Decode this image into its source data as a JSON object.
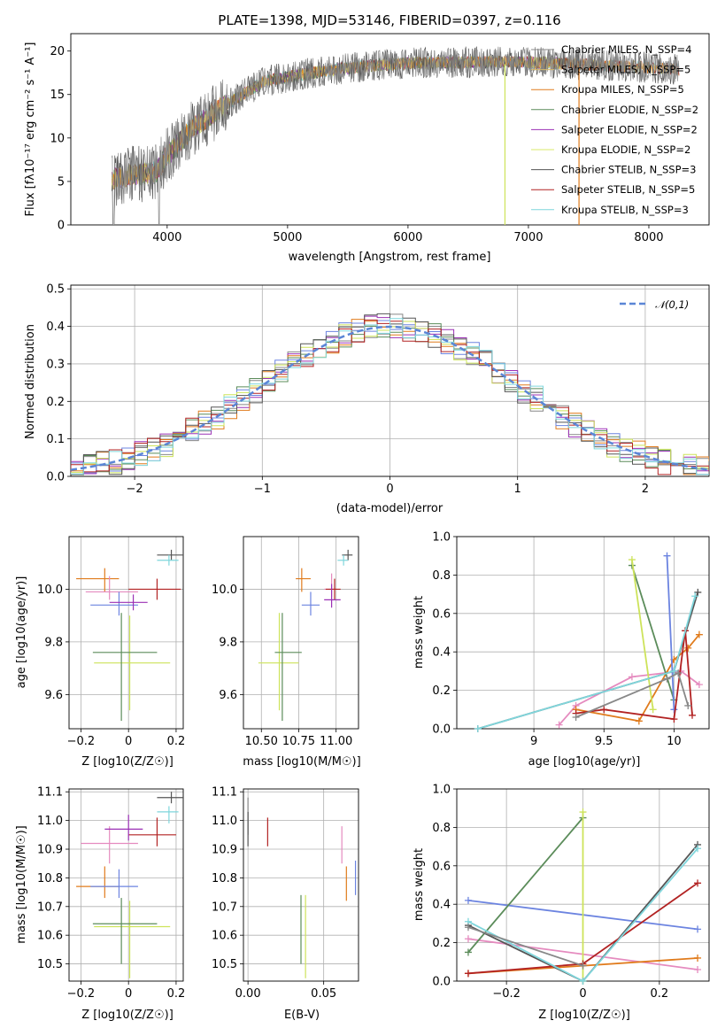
{
  "chart_data": [
    {
      "id": "spectrum",
      "type": "line",
      "title": "PLATE=1398, MJD=53146, FIBERID=0397, z=0.116",
      "xlabel": "wavelength [Angstrom, rest frame]",
      "ylabel": "Flux [fλ10⁻¹⁷ erg cm⁻² s⁻¹ A⁻¹]",
      "xlim": [
        3200,
        8500
      ],
      "ylim": [
        0,
        22
      ],
      "xticks": [
        4000,
        5000,
        6000,
        7000,
        8000
      ],
      "yticks": [
        0,
        5,
        10,
        15,
        20
      ],
      "grid": false,
      "legend_position": "upper right",
      "continuum": [
        [
          3540,
          5.2
        ],
        [
          3700,
          5.8
        ],
        [
          3900,
          6.0
        ],
        [
          4000,
          8.0
        ],
        [
          4200,
          11.0
        ],
        [
          4400,
          13.0
        ],
        [
          4800,
          16.5
        ],
        [
          5200,
          17.5
        ],
        [
          5600,
          18.2
        ],
        [
          6000,
          18.6
        ],
        [
          6400,
          18.7
        ],
        [
          6800,
          18.8
        ],
        [
          7200,
          18.6
        ],
        [
          7600,
          18.4
        ],
        [
          8000,
          18.1
        ],
        [
          8250,
          17.9
        ]
      ],
      "series": [
        {
          "name": "Chabrier MILES, N_SSP=4",
          "color": "#888888"
        },
        {
          "name": "Salpeter MILES, N_SSP=5",
          "color": "#d4b86a"
        },
        {
          "name": "Kroupa MILES, N_SSP=5",
          "color": "#e07b1c"
        },
        {
          "name": "Chabrier ELODIE, N_SSP=2",
          "color": "#5b8c5a"
        },
        {
          "name": "Salpeter ELODIE, N_SSP=2",
          "color": "#9b30b5"
        },
        {
          "name": "Kroupa ELODIE, N_SSP=2",
          "color": "#d8e86a"
        },
        {
          "name": "Chabrier STELIB, N_SSP=3",
          "color": "#555555"
        },
        {
          "name": "Salpeter STELIB, N_SSP=5",
          "color": "#b22222"
        },
        {
          "name": "Kroupa STELIB, N_SSP=3",
          "color": "#7fd6dc"
        }
      ]
    },
    {
      "id": "residuals",
      "type": "line",
      "xlabel": "(data-model)/error",
      "ylabel": "Normed distribution",
      "xlim": [
        -2.5,
        2.5
      ],
      "ylim": [
        0,
        0.51
      ],
      "xticks": [
        -2,
        -1,
        0,
        1,
        2
      ],
      "yticks": [
        0.0,
        0.1,
        0.2,
        0.3,
        0.4,
        0.5
      ],
      "grid": true,
      "bin_width": 0.1,
      "legend": "𝒩(0,1)",
      "legend_position": "upper right"
    },
    {
      "id": "age-vs-Z",
      "type": "scatter",
      "xlabel": "Z [log10(Z/Z☉)]",
      "ylabel": "age [log10(age/yr)]",
      "xlim": [
        -0.25,
        0.23
      ],
      "ylim": [
        9.47,
        10.2
      ],
      "xticks": [
        -0.2,
        0.0,
        0.2
      ],
      "yticks": [
        9.6,
        9.8,
        10.0
      ],
      "grid": true,
      "points": [
        {
          "x": 0.005,
          "y": 9.72,
          "x_err": [
            0.15,
            0.17
          ],
          "y_err": [
            0.18,
            0.18
          ],
          "series": 5
        },
        {
          "x": -0.03,
          "y": 9.76,
          "x_err": [
            0.12,
            0.15
          ],
          "y_err": [
            0.26,
            0.15
          ],
          "series": 3
        },
        {
          "x": -0.1,
          "y": 10.04,
          "x_err": [
            0.12,
            0.06
          ],
          "y_err": [
            0.05,
            0.04
          ],
          "series": 2
        },
        {
          "x": -0.08,
          "y": 9.99,
          "x_err": [
            0.1,
            0.12
          ],
          "y_err": [
            0.03,
            0.06
          ],
          "series": 1
        },
        {
          "x": 0.12,
          "y": 10.0,
          "x_err": [
            0.12,
            0.1
          ],
          "y_err": [
            0.04,
            0.04
          ],
          "series": 7
        },
        {
          "x": 0.18,
          "y": 10.13,
          "x_err": [
            0.06,
            0.05
          ],
          "y_err": [
            0.02,
            0.02
          ],
          "series": 6
        },
        {
          "x": 0.17,
          "y": 10.11,
          "x_err": [
            0.05,
            0.04
          ],
          "y_err": [
            0.02,
            0.02
          ],
          "series": 8
        },
        {
          "x": -0.04,
          "y": 9.94,
          "x_err": [
            0.12,
            0.08
          ],
          "y_err": [
            0.04,
            0.05
          ],
          "series": 4
        },
        {
          "x": 0.02,
          "y": 9.95,
          "x_err": [
            0.1,
            0.06
          ],
          "y_err": [
            0.03,
            0.03
          ],
          "series": 9
        }
      ]
    },
    {
      "id": "age-vs-mass",
      "type": "scatter",
      "xlabel": "mass [log10(M/M☉)]",
      "ylim": [
        9.47,
        10.2
      ],
      "xlim": [
        10.38,
        11.15
      ],
      "xticks": [
        10.5,
        10.75,
        11.0
      ],
      "xticklabels": [
        "10.50",
        "10.75",
        "11.00"
      ],
      "yticks": [
        9.6,
        9.8,
        10.0
      ],
      "grid": true,
      "points": [
        {
          "x": 10.62,
          "y": 9.72,
          "x_err": [
            0.14,
            0.13
          ],
          "y_err": [
            0.18,
            0.19
          ],
          "series": 5
        },
        {
          "x": 10.64,
          "y": 9.76,
          "x_err": [
            0.05,
            0.13
          ],
          "y_err": [
            0.26,
            0.15
          ],
          "series": 3
        },
        {
          "x": 10.77,
          "y": 10.04,
          "x_err": [
            0.04,
            0.06
          ],
          "y_err": [
            0.05,
            0.04
          ],
          "series": 2
        },
        {
          "x": 10.97,
          "y": 10.0,
          "x_err": [
            0.05,
            0.03
          ],
          "y_err": [
            0.03,
            0.06
          ],
          "series": 1
        },
        {
          "x": 10.99,
          "y": 10.0,
          "x_err": [
            0.06,
            0.04
          ],
          "y_err": [
            0.04,
            0.04
          ],
          "series": 7
        },
        {
          "x": 11.08,
          "y": 10.13,
          "x_err": [
            0.04,
            0.03
          ],
          "y_err": [
            0.02,
            0.02
          ],
          "series": 6
        },
        {
          "x": 11.05,
          "y": 10.11,
          "x_err": [
            0.04,
            0.03
          ],
          "y_err": [
            0.02,
            0.02
          ],
          "series": 8
        },
        {
          "x": 10.83,
          "y": 9.94,
          "x_err": [
            0.06,
            0.06
          ],
          "y_err": [
            0.04,
            0.05
          ],
          "series": 4
        },
        {
          "x": 10.97,
          "y": 9.96,
          "x_err": [
            0.05,
            0.06
          ],
          "y_err": [
            0.03,
            0.06
          ],
          "series": 9
        }
      ]
    },
    {
      "id": "weight-vs-age",
      "type": "line",
      "xlabel": "age [log10(age/yr)]",
      "ylabel": "mass weight",
      "xlim": [
        8.45,
        10.25
      ],
      "ylim": [
        0,
        1.0
      ],
      "xticks": [
        9.0,
        9.5,
        10.0
      ],
      "yticks": [
        0.0,
        0.2,
        0.4,
        0.6,
        0.8,
        1.0
      ],
      "grid": true,
      "series": [
        {
          "series": 1,
          "points": [
            [
              9.18,
              0.02
            ],
            [
              9.3,
              0.12
            ],
            [
              9.7,
              0.27
            ],
            [
              10.05,
              0.3
            ],
            [
              10.18,
              0.23
            ]
          ]
        },
        {
          "series": 2,
          "points": [
            [
              9.3,
              0.1
            ],
            [
              9.75,
              0.04
            ],
            [
              10.0,
              0.36
            ],
            [
              10.1,
              0.42
            ],
            [
              10.18,
              0.49
            ]
          ]
        },
        {
          "series": 3,
          "points": [
            [
              9.7,
              0.85
            ],
            [
              10.0,
              0.15
            ]
          ]
        },
        {
          "series": 4,
          "points": [
            [
              9.95,
              0.9
            ],
            [
              10.0,
              0.1
            ]
          ]
        },
        {
          "series": 5,
          "points": [
            [
              9.7,
              0.88
            ],
            [
              9.85,
              0.1
            ]
          ]
        },
        {
          "series": 6,
          "points": [
            [
              8.6,
              0.0
            ],
            [
              10.0,
              0.3
            ],
            [
              10.17,
              0.71
            ]
          ]
        },
        {
          "series": 7,
          "points": [
            [
              9.3,
              0.08
            ],
            [
              9.5,
              0.1
            ],
            [
              10.0,
              0.05
            ],
            [
              10.08,
              0.51
            ],
            [
              10.13,
              0.07
            ]
          ]
        },
        {
          "series": 8,
          "points": [
            [
              8.6,
              0.0
            ],
            [
              10.0,
              0.3
            ],
            [
              10.15,
              0.69
            ]
          ]
        },
        {
          "series": 0,
          "points": [
            [
              9.3,
              0.06
            ],
            [
              9.95,
              0.26
            ],
            [
              10.03,
              0.29
            ],
            [
              10.1,
              0.12
            ]
          ]
        }
      ]
    },
    {
      "id": "mass-vs-Z",
      "type": "scatter",
      "xlabel": "Z [log10(Z/Z☉)]",
      "ylabel": "mass [log10(M/M☉)]",
      "xlim": [
        -0.25,
        0.23
      ],
      "ylim": [
        10.44,
        11.11
      ],
      "xticks": [
        -0.2,
        0.0,
        0.2
      ],
      "yticks": [
        10.5,
        10.6,
        10.7,
        10.8,
        10.9,
        11.0,
        11.1
      ],
      "grid": true,
      "points": [
        {
          "x": 0.005,
          "y": 10.63,
          "x_err": [
            0.15,
            0.17
          ],
          "y_err": [
            0.18,
            0.09
          ],
          "series": 5
        },
        {
          "x": -0.03,
          "y": 10.64,
          "x_err": [
            0.12,
            0.15
          ],
          "y_err": [
            0.14,
            0.09
          ],
          "series": 3
        },
        {
          "x": -0.1,
          "y": 10.77,
          "x_err": [
            0.12,
            0.06
          ],
          "y_err": [
            0.04,
            0.07
          ],
          "series": 2
        },
        {
          "x": -0.08,
          "y": 10.92,
          "x_err": [
            0.12,
            0.12
          ],
          "y_err": [
            0.07,
            0.06
          ],
          "series": 1
        },
        {
          "x": 0.12,
          "y": 10.95,
          "x_err": [
            0.12,
            0.08
          ],
          "y_err": [
            0.04,
            0.06
          ],
          "series": 7
        },
        {
          "x": 0.18,
          "y": 11.08,
          "x_err": [
            0.06,
            0.05
          ],
          "y_err": [
            0.02,
            0.02
          ],
          "series": 6
        },
        {
          "x": 0.17,
          "y": 11.03,
          "x_err": [
            0.05,
            0.04
          ],
          "y_err": [
            0.04,
            0.02
          ],
          "series": 8
        },
        {
          "x": -0.04,
          "y": 10.77,
          "x_err": [
            0.12,
            0.08
          ],
          "y_err": [
            0.04,
            0.06
          ],
          "series": 4
        },
        {
          "x": 0.0,
          "y": 10.97,
          "x_err": [
            0.1,
            0.06
          ],
          "y_err": [
            0.04,
            0.05
          ],
          "series": 9
        }
      ]
    },
    {
      "id": "mass-vs-ebv",
      "type": "scatter",
      "xlabel": "E(B-V)",
      "xlim": [
        -0.003,
        0.073
      ],
      "ylim": [
        10.44,
        11.11
      ],
      "xticks": [
        0.0,
        0.05
      ],
      "xticklabels": [
        "0.00",
        "0.05"
      ],
      "yticks": [
        10.5,
        10.6,
        10.7,
        10.8,
        10.9,
        11.0,
        11.1
      ],
      "grid": true,
      "points": [
        {
          "x": 0.0,
          "y": 11.03,
          "y_err": [
            0.08,
            0.05
          ],
          "series": 0
        },
        {
          "x": 0.0,
          "y": 10.97,
          "y_err": [
            0.06,
            0.06
          ],
          "series": 6
        },
        {
          "x": 0.013,
          "y": 10.96,
          "y_err": [
            0.05,
            0.05
          ],
          "series": 7
        },
        {
          "x": 0.035,
          "y": 10.63,
          "y_err": [
            0.13,
            0.11
          ],
          "series": 3
        },
        {
          "x": 0.038,
          "y": 10.6,
          "y_err": [
            0.15,
            0.14
          ],
          "series": 5
        },
        {
          "x": 0.062,
          "y": 10.92,
          "y_err": [
            0.07,
            0.06
          ],
          "series": 1
        },
        {
          "x": 0.065,
          "y": 10.78,
          "y_err": [
            0.06,
            0.06
          ],
          "series": 2
        },
        {
          "x": 0.071,
          "y": 10.8,
          "y_err": [
            0.06,
            0.06
          ],
          "series": 4
        }
      ]
    },
    {
      "id": "weight-vs-Z",
      "type": "line",
      "xlabel": "Z [log10(Z/Z☉)]",
      "ylabel": "mass weight",
      "xlim": [
        -0.33,
        0.33
      ],
      "ylim": [
        0,
        1.0
      ],
      "xticks": [
        -0.2,
        0.0,
        0.2
      ],
      "yticks": [
        0.0,
        0.2,
        0.4,
        0.6,
        0.8,
        1.0
      ],
      "grid": true,
      "series": [
        {
          "series": 4,
          "points": [
            [
              -0.3,
              0.42
            ],
            [
              0.3,
              0.27
            ]
          ]
        },
        {
          "series": 1,
          "points": [
            [
              -0.3,
              0.22
            ],
            [
              0.3,
              0.06
            ]
          ]
        },
        {
          "series": 2,
          "points": [
            [
              -0.3,
              0.04
            ],
            [
              0.3,
              0.12
            ]
          ]
        },
        {
          "series": 3,
          "points": [
            [
              -0.3,
              0.15
            ],
            [
              0.0,
              0.85
            ]
          ]
        },
        {
          "series": 5,
          "points": [
            [
              0.0,
              0.88
            ],
            [
              0.0,
              0.0
            ]
          ]
        },
        {
          "series": 6,
          "points": [
            [
              -0.3,
              0.29
            ],
            [
              0.0,
              0.0
            ],
            [
              0.3,
              0.71
            ]
          ]
        },
        {
          "series": 7,
          "points": [
            [
              -0.3,
              0.04
            ],
            [
              0.0,
              0.09
            ],
            [
              0.3,
              0.51
            ]
          ]
        },
        {
          "series": 8,
          "points": [
            [
              -0.3,
              0.31
            ],
            [
              0.0,
              0.0
            ],
            [
              0.3,
              0.69
            ]
          ]
        },
        {
          "series": 0,
          "points": [
            [
              -0.3,
              0.28
            ],
            [
              0.0,
              0.08
            ]
          ]
        }
      ]
    }
  ],
  "palette": [
    "#888888",
    "#e58bbf",
    "#e07b1c",
    "#5b8c5a",
    "#6c84e0",
    "#cde35a",
    "#555555",
    "#b22222",
    "#7fd6dc",
    "#9b30b5"
  ]
}
